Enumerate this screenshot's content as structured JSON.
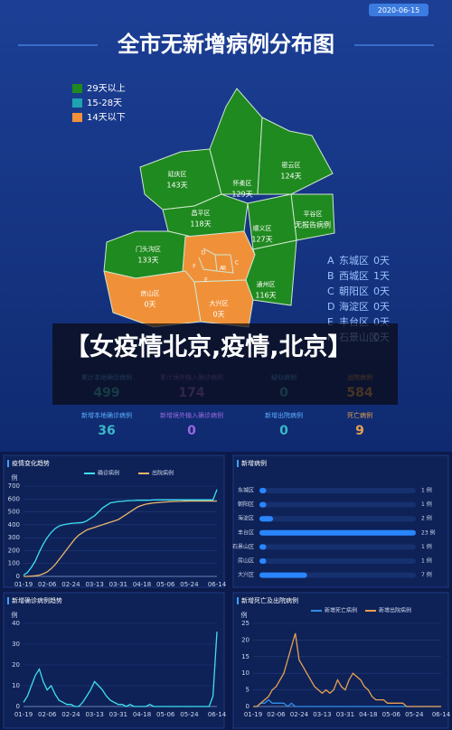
{
  "date": "2020-06-15",
  "title": "全市无新增病例分布图",
  "legend": [
    {
      "label": "29天以上",
      "color": "#1f8a1f"
    },
    {
      "label": "15-28天",
      "color": "#1fa3b0"
    },
    {
      "label": "14天以下",
      "color": "#f0913a"
    }
  ],
  "districts": [
    {
      "name": "延庆区",
      "days": "143天"
    },
    {
      "name": "怀柔区",
      "days": "129天"
    },
    {
      "name": "密云区",
      "days": "124天"
    },
    {
      "name": "昌平区",
      "days": "118天"
    },
    {
      "name": "顺义区",
      "days": "127天"
    },
    {
      "name": "平谷区",
      "days": "无报告病例"
    },
    {
      "name": "门头沟区",
      "days": "133天"
    },
    {
      "name": "通州区",
      "days": "116天"
    },
    {
      "name": "房山区",
      "days": "0天"
    },
    {
      "name": "大兴区",
      "days": "0天"
    }
  ],
  "district_list": [
    {
      "letter": "A",
      "name": "东城区",
      "days": "0天"
    },
    {
      "letter": "B",
      "name": "西城区",
      "days": "1天"
    },
    {
      "letter": "C",
      "name": "朝阳区",
      "days": "0天"
    },
    {
      "letter": "D",
      "name": "海淀区",
      "days": "0天"
    },
    {
      "letter": "E",
      "name": "丰台区",
      "days": "0天"
    },
    {
      "letter": "F",
      "name": "石景山区",
      "days": "0天"
    }
  ],
  "banner": "【女疫情北京,疫情,北京】",
  "stats": [
    {
      "label": "累计本地确诊病例",
      "value": 499,
      "color": "#3ab8c8"
    },
    {
      "label": "累计境外输入确诊病例",
      "value": 174,
      "color": "#9a6ae0"
    },
    {
      "label": "疑似病例",
      "value": 0,
      "color": "#3ab8c8"
    },
    {
      "label": "出院病例",
      "value": 584,
      "color": "#e8a050"
    },
    {
      "label": "新增本地确诊病例",
      "value": 36,
      "color": "#3ab8c8"
    },
    {
      "label": "新增境外输入确诊病例",
      "value": 0,
      "color": "#9a6ae0"
    },
    {
      "label": "新增出院病例",
      "value": 0,
      "color": "#3ab8c8"
    },
    {
      "label": "死亡病例",
      "value": 9,
      "color": "#e8a050"
    }
  ],
  "chart_data": [
    {
      "type": "line",
      "title": "疫情变化趋势",
      "ylabel": "例",
      "categories": [
        "01-19",
        null,
        null,
        null,
        null,
        null,
        "02-06",
        null,
        null,
        null,
        null,
        null,
        "02-24",
        null,
        null,
        null,
        null,
        null,
        "03-13",
        null,
        null,
        null,
        null,
        null,
        "03-31",
        null,
        null,
        null,
        null,
        null,
        "04-18",
        null,
        null,
        null,
        null,
        null,
        "05-06",
        null,
        null,
        null,
        null,
        null,
        "05-24",
        null,
        null,
        null,
        null,
        null,
        null,
        "06-14"
      ],
      "series": [
        {
          "name": "确诊病例",
          "color": "#3ee0f0",
          "values": [
            10,
            30,
            70,
            120,
            190,
            250,
            300,
            340,
            370,
            390,
            400,
            405,
            410,
            413,
            415,
            418,
            430,
            450,
            470,
            500,
            530,
            550,
            570,
            575,
            580,
            582,
            585,
            587,
            588,
            590,
            590,
            590,
            591,
            592,
            593,
            593,
            593,
            593,
            593,
            593,
            593,
            593,
            593,
            593,
            593,
            593,
            593,
            593,
            593,
            673
          ]
        },
        {
          "name": "出院病例",
          "color": "#e8b46a",
          "values": [
            0,
            0,
            2,
            5,
            10,
            20,
            35,
            60,
            90,
            130,
            170,
            210,
            250,
            290,
            320,
            340,
            360,
            370,
            380,
            390,
            400,
            410,
            420,
            430,
            440,
            460,
            480,
            500,
            520,
            540,
            550,
            560,
            565,
            570,
            572,
            575,
            577,
            579,
            580,
            581,
            582,
            583,
            584,
            584,
            584,
            584,
            584,
            584,
            584,
            584
          ]
        }
      ],
      "ylim": [
        0,
        700
      ],
      "yticks": [
        0,
        100,
        200,
        300,
        400,
        500,
        600,
        700
      ],
      "grid": true
    },
    {
      "type": "hbar",
      "title": "新增病例",
      "categories": [
        "东城区",
        "朝阳区",
        "海淀区",
        "丰台区",
        "石景山区",
        "房山区",
        "大兴区"
      ],
      "values": [
        1,
        1,
        2,
        23,
        1,
        1,
        7
      ],
      "value_labels": [
        "1 例",
        "1 例",
        "2 例",
        "23 例",
        "1 例",
        "1 例",
        "7 例"
      ],
      "color": "#2a86ff"
    },
    {
      "type": "line",
      "title": "新增确诊病例趋势",
      "ylabel": "例",
      "categories": [
        "01-19",
        null,
        null,
        null,
        null,
        null,
        "02-06",
        null,
        null,
        null,
        null,
        null,
        "02-24",
        null,
        null,
        null,
        null,
        null,
        "03-13",
        null,
        null,
        null,
        null,
        null,
        "03-31",
        null,
        null,
        null,
        null,
        null,
        "04-18",
        null,
        null,
        null,
        null,
        null,
        "05-06",
        null,
        null,
        null,
        null,
        null,
        "05-24",
        null,
        null,
        null,
        null,
        null,
        null,
        "06-14"
      ],
      "series": [
        {
          "color": "#3ee0f0",
          "values": [
            2,
            5,
            10,
            15,
            18,
            12,
            8,
            10,
            6,
            3,
            2,
            1,
            1,
            0,
            0,
            2,
            5,
            8,
            12,
            10,
            8,
            5,
            3,
            2,
            1,
            1,
            0,
            1,
            0,
            0,
            0,
            0,
            1,
            0,
            0,
            0,
            0,
            0,
            0,
            0,
            0,
            0,
            0,
            0,
            0,
            0,
            0,
            0,
            5,
            36
          ]
        }
      ],
      "ylim": [
        0,
        40
      ],
      "yticks": [
        0,
        10,
        20,
        30,
        40
      ],
      "grid": true
    },
    {
      "type": "line",
      "title": "新增死亡及出院病例",
      "ylabel": "例",
      "categories": [
        "01-19",
        null,
        null,
        null,
        null,
        null,
        "02-06",
        null,
        null,
        null,
        null,
        null,
        "02-24",
        null,
        null,
        null,
        null,
        null,
        "03-13",
        null,
        null,
        null,
        null,
        null,
        "03-31",
        null,
        null,
        null,
        null,
        null,
        "04-18",
        null,
        null,
        null,
        null,
        null,
        "05-06",
        null,
        null,
        null,
        null,
        null,
        "05-24",
        null,
        null,
        null,
        null,
        null,
        null,
        "06-14"
      ],
      "series": [
        {
          "name": "新增死亡病例",
          "color": "#2f8fe8",
          "values": [
            0,
            0,
            1,
            1,
            2,
            1,
            1,
            1,
            1,
            0,
            1,
            0,
            0,
            0,
            0,
            0,
            0,
            0,
            0,
            0,
            0,
            0,
            0,
            0,
            0,
            0,
            0,
            0,
            0,
            0,
            0,
            0,
            0,
            0,
            0,
            0,
            0,
            0,
            0,
            0,
            0,
            0,
            0,
            0,
            0,
            0,
            0,
            0,
            0,
            0
          ]
        },
        {
          "name": "新增出院病例",
          "color": "#e8a050",
          "values": [
            0,
            0,
            1,
            2,
            3,
            5,
            6,
            8,
            10,
            14,
            18,
            22,
            14,
            12,
            10,
            8,
            6,
            5,
            4,
            5,
            4,
            5,
            8,
            6,
            5,
            8,
            10,
            9,
            8,
            6,
            5,
            3,
            2,
            2,
            2,
            1,
            1,
            1,
            1,
            1,
            0,
            0,
            0,
            0,
            0,
            0,
            0,
            0,
            0,
            0
          ]
        }
      ],
      "ylim": [
        0,
        25
      ],
      "yticks": [
        0,
        5,
        10,
        15,
        20,
        25
      ],
      "grid": true
    }
  ]
}
